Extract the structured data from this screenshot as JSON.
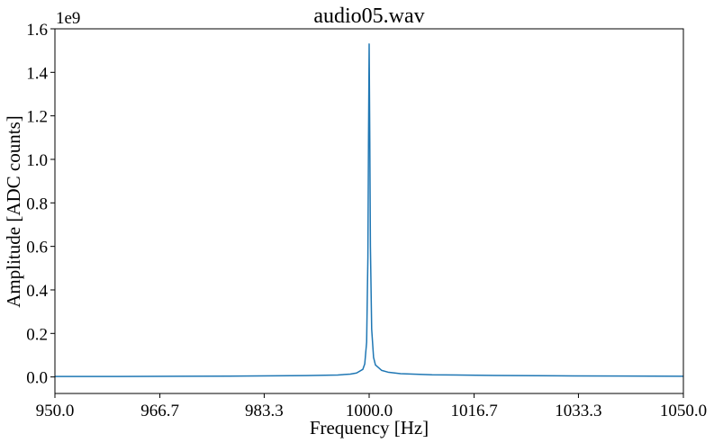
{
  "chart_data": {
    "type": "line",
    "title": "audio05.wav",
    "xlabel": "Frequency [Hz]",
    "ylabel": "Amplitude [ADC counts]",
    "y_offset_label": "1e9",
    "xlim": [
      950.0,
      1050.0
    ],
    "ylim": [
      -0.076,
      1.6
    ],
    "x_ticks": [
      950.0,
      966.7,
      983.3,
      1000.0,
      1016.7,
      1033.3,
      1050.0
    ],
    "x_tick_labels": [
      "950.0",
      "966.7",
      "983.3",
      "1000.0",
      "1016.7",
      "1033.3",
      "1050.0"
    ],
    "y_ticks": [
      0.0,
      0.2,
      0.4,
      0.6,
      0.8,
      1.0,
      1.2,
      1.4,
      1.6
    ],
    "y_tick_labels": [
      "0.0",
      "0.2",
      "0.4",
      "0.6",
      "0.8",
      "1.0",
      "1.2",
      "1.4",
      "1.6"
    ],
    "grid": false,
    "legend": "none",
    "series": [
      {
        "color": "#1f77b4",
        "x": [
          950.0,
          960.0,
          970.0,
          980.0,
          990.0,
          995.0,
          997.0,
          998.0,
          999.0,
          999.3,
          999.6,
          999.8,
          999.9,
          1000.0,
          1000.1,
          1000.2,
          1000.4,
          1000.7,
          1001.0,
          1002.0,
          1003.0,
          1005.0,
          1010.0,
          1020.0,
          1030.0,
          1040.0,
          1050.0
        ],
        "y": [
          0.002,
          0.002,
          0.003,
          0.004,
          0.006,
          0.009,
          0.013,
          0.018,
          0.035,
          0.06,
          0.16,
          0.55,
          1.1,
          1.53,
          1.1,
          0.6,
          0.22,
          0.09,
          0.055,
          0.03,
          0.022,
          0.015,
          0.01,
          0.007,
          0.005,
          0.004,
          0.003
        ]
      }
    ]
  }
}
